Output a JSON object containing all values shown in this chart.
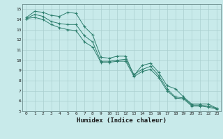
{
  "line1_x": [
    0,
    1,
    2,
    3,
    4,
    5,
    6,
    7,
    8,
    9,
    10,
    11,
    12,
    13,
    14,
    15,
    16,
    17,
    18,
    19,
    20,
    21,
    22,
    23
  ],
  "line1_y": [
    14.2,
    14.8,
    14.7,
    14.4,
    14.3,
    14.7,
    14.6,
    13.3,
    12.5,
    10.3,
    10.2,
    10.4,
    10.4,
    8.5,
    9.5,
    9.7,
    8.8,
    7.5,
    7.2,
    6.4,
    5.7,
    5.7,
    5.7,
    5.3
  ],
  "line2_x": [
    0,
    1,
    2,
    3,
    4,
    5,
    6,
    7,
    8,
    9,
    10,
    11,
    12,
    13,
    14,
    15,
    16,
    17,
    18,
    19,
    20,
    21,
    22,
    23
  ],
  "line2_y": [
    14.1,
    14.5,
    14.3,
    13.8,
    13.6,
    13.5,
    13.5,
    12.4,
    11.8,
    9.9,
    9.9,
    10.0,
    10.1,
    8.6,
    9.1,
    9.4,
    8.5,
    7.2,
    6.4,
    6.3,
    5.6,
    5.6,
    5.5,
    5.3
  ],
  "line3_x": [
    0,
    1,
    2,
    3,
    4,
    5,
    6,
    7,
    8,
    9,
    10,
    11,
    12,
    13,
    14,
    15,
    16,
    17,
    18,
    19,
    20,
    21,
    22,
    23
  ],
  "line3_y": [
    14.1,
    14.2,
    14.0,
    13.5,
    13.2,
    13.0,
    12.9,
    11.8,
    11.3,
    9.8,
    9.8,
    9.9,
    9.9,
    8.4,
    8.9,
    9.1,
    8.3,
    7.0,
    6.3,
    6.2,
    5.5,
    5.5,
    5.4,
    5.2
  ],
  "line_color": "#2e7f6e",
  "bg_color": "#c8eaea",
  "grid_color_major": "#aacfcf",
  "grid_color_minor": "#bddada",
  "xlabel": "Humidex (Indice chaleur)",
  "ylim": [
    5,
    15.5
  ],
  "xlim": [
    -0.5,
    23.5
  ],
  "yticks": [
    5,
    6,
    7,
    8,
    9,
    10,
    11,
    12,
    13,
    14,
    15
  ],
  "xticks": [
    0,
    1,
    2,
    3,
    4,
    5,
    6,
    7,
    8,
    9,
    10,
    11,
    12,
    13,
    14,
    15,
    16,
    17,
    18,
    19,
    20,
    21,
    22,
    23
  ]
}
